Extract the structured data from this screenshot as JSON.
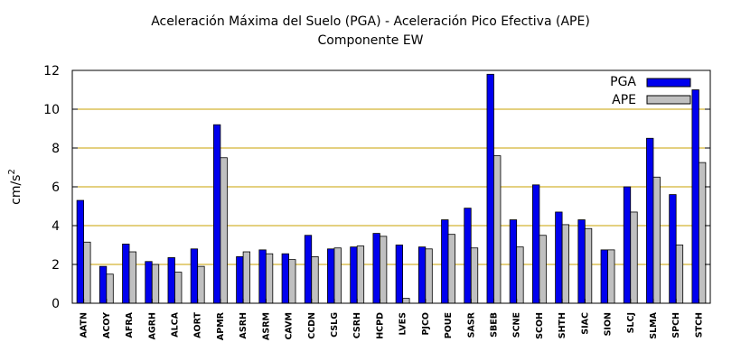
{
  "chart_data": {
    "type": "bar",
    "title": "Aceleración Máxima del Suelo (PGA) -  Aceleración Pico Efectiva (APE)",
    "subtitle": "Componente EW",
    "xlabel": "",
    "ylabel": "cm/s",
    "ylabel_sup": "2",
    "ylim": [
      0,
      12
    ],
    "yticks": [
      0,
      2,
      4,
      6,
      8,
      10,
      12
    ],
    "grid": true,
    "legend_position": "top-right",
    "categories": [
      "AATN",
      "ACOY",
      "AFRA",
      "AGRH",
      "ALCA",
      "AORT",
      "APMR",
      "ASRH",
      "ASRM",
      "CAVM",
      "CCDN",
      "CSLG",
      "CSRH",
      "HCPD",
      "LVES",
      "PJCO",
      "POUE",
      "SASR",
      "SBEB",
      "SCNE",
      "SCOH",
      "SHTH",
      "SIAC",
      "SION",
      "SLCJ",
      "SLMA",
      "SPCH",
      "STCH"
    ],
    "series": [
      {
        "name": "PGA",
        "color": "#0000ee",
        "values": [
          5.3,
          1.9,
          3.05,
          2.15,
          2.35,
          2.8,
          9.2,
          2.4,
          2.75,
          2.55,
          3.5,
          2.8,
          2.9,
          3.6,
          3.0,
          2.9,
          4.3,
          4.9,
          11.8,
          4.3,
          6.1,
          4.7,
          4.3,
          2.75,
          6.0,
          8.5,
          5.6,
          11.0
        ]
      },
      {
        "name": "APE",
        "color": "#c0c0c0",
        "values": [
          3.15,
          1.5,
          2.65,
          2.0,
          1.6,
          1.9,
          7.5,
          2.65,
          2.55,
          2.25,
          2.4,
          2.85,
          2.95,
          3.45,
          0.25,
          2.8,
          3.55,
          2.85,
          7.6,
          2.9,
          3.5,
          4.05,
          3.85,
          2.75,
          4.7,
          6.5,
          3.0,
          7.25
        ]
      }
    ]
  }
}
